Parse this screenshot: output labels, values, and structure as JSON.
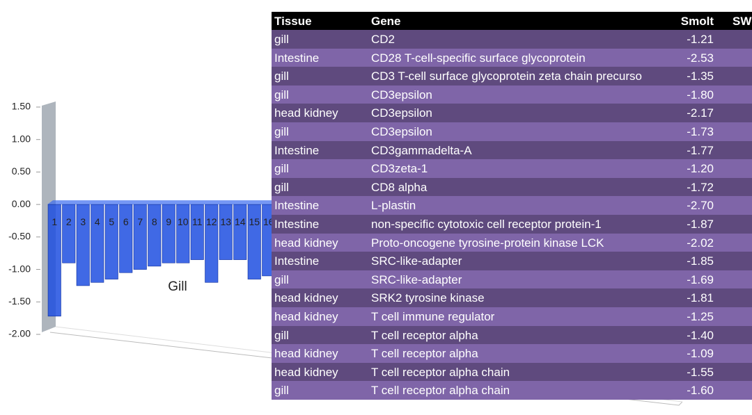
{
  "chart_data": {
    "type": "bar",
    "annotation": "Gill",
    "categories": [
      "1",
      "2",
      "3",
      "4",
      "5",
      "6",
      "7",
      "8",
      "9",
      "10",
      "11",
      "12",
      "13",
      "14",
      "15",
      "16"
    ],
    "values": [
      -1.72,
      -0.9,
      -1.25,
      -1.2,
      -1.15,
      -1.05,
      -1.0,
      -0.95,
      -0.9,
      -0.9,
      -0.85,
      -1.2,
      -0.85,
      -0.85,
      -1.15,
      -1.1
    ],
    "color": "#1f4fe0",
    "ylim": [
      -2,
      1.5
    ],
    "yticks": [
      {
        "value": -2,
        "label": "-2.00"
      },
      {
        "value": -1.5,
        "label": "-1.50"
      },
      {
        "value": -1,
        "label": "-1.00"
      },
      {
        "value": -0.5,
        "label": "-0.50"
      },
      {
        "value": 0,
        "label": "0.00"
      },
      {
        "value": 0.5,
        "label": "0.50"
      },
      {
        "value": 1,
        "label": "1.00"
      },
      {
        "value": 1.5,
        "label": "1.50"
      }
    ]
  },
  "table": {
    "header": [
      "Tissue",
      "Gene",
      "Smolt",
      "SW"
    ],
    "rows": [
      [
        "gill",
        "CD2",
        "-1.21"
      ],
      [
        "Intestine",
        "CD28  T-cell-specific surface glycoprotein",
        "-2.53"
      ],
      [
        "gill",
        "CD3 T-cell surface glycoprotein zeta chain precurso",
        "-1.35"
      ],
      [
        "gill",
        "CD3epsilon",
        "-1.80"
      ],
      [
        "head kidney",
        "CD3epsilon",
        "-2.17"
      ],
      [
        "gill",
        "CD3epsilon",
        "-1.73"
      ],
      [
        "Intestine",
        "CD3gammadelta-A",
        "-1.77"
      ],
      [
        "gill",
        "CD3zeta-1",
        "-1.20"
      ],
      [
        "gill",
        "CD8 alpha",
        "-1.72"
      ],
      [
        "Intestine",
        "L-plastin",
        "-2.70"
      ],
      [
        "Intestine",
        "non-specific cytotoxic cell receptor protein-1",
        "-1.87"
      ],
      [
        "head kidney",
        "Proto-oncogene tyrosine-protein kinase LCK",
        "-2.02"
      ],
      [
        "Intestine",
        "SRC-like-adapter",
        "-1.85"
      ],
      [
        "gill",
        "SRC-like-adapter",
        "-1.69"
      ],
      [
        "head kidney",
        "SRK2 tyrosine kinase",
        "-1.81"
      ],
      [
        "head kidney",
        "T cell immune regulator",
        "-1.25"
      ],
      [
        "gill",
        "T cell receptor alpha",
        "-1.40"
      ],
      [
        "head kidney",
        "T cell receptor alpha",
        "-1.09"
      ],
      [
        "head kidney",
        "T cell receptor alpha chain",
        "-1.55"
      ],
      [
        "gill",
        "T cell receptor alpha chain",
        "-1.60"
      ]
    ]
  }
}
